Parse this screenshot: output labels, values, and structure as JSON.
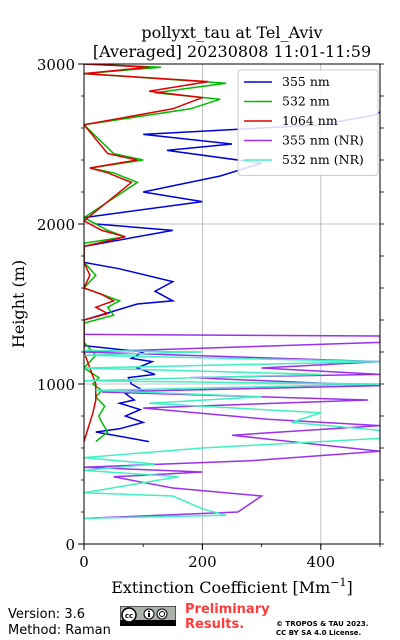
{
  "chart_data": {
    "type": "line",
    "title_line1": "pollyxt_tau at Tel_Aviv",
    "title_line2": "[Averaged] 20230808 11:01-11:59",
    "xlabel": "Extinction Coefficient [Mm",
    "xlabel_sup": "−1",
    "xlabel_close": "]",
    "ylabel": "Height (m)",
    "xlim": [
      0,
      500
    ],
    "ylim": [
      0,
      3000
    ],
    "xticks": [
      0,
      200,
      400
    ],
    "xticks_labels": [
      "0",
      "200",
      "400"
    ],
    "yticks": [
      0,
      1000,
      2000,
      3000
    ],
    "yticks_labels": [
      "0",
      "1000",
      "2000",
      "3000"
    ],
    "grid": true,
    "legend_position": "top-right",
    "series": [
      {
        "name": "355 nm",
        "color": "#0000dd",
        "points": [
          [
            110,
            640
          ],
          [
            20,
            700
          ],
          [
            60,
            720
          ],
          [
            100,
            760
          ],
          [
            70,
            800
          ],
          [
            95,
            840
          ],
          [
            60,
            880
          ],
          [
            85,
            900
          ],
          [
            70,
            940
          ],
          [
            100,
            960
          ],
          [
            80,
            1000
          ],
          [
            75,
            1040
          ],
          [
            120,
            1060
          ],
          [
            90,
            1100
          ],
          [
            115,
            1140
          ],
          [
            80,
            1160
          ],
          [
            100,
            1200
          ],
          [
            0,
            1240
          ],
          [
            0,
            1300
          ],
          [
            0,
            1400
          ],
          [
            90,
            1500
          ],
          [
            150,
            1520
          ],
          [
            120,
            1580
          ],
          [
            150,
            1640
          ],
          [
            60,
            1720
          ],
          [
            0,
            1760
          ],
          [
            0,
            1860
          ],
          [
            150,
            1960
          ],
          [
            20,
            2000
          ],
          [
            0,
            2040
          ],
          [
            200,
            2140
          ],
          [
            100,
            2200
          ],
          [
            230,
            2300
          ],
          [
            300,
            2380
          ],
          [
            140,
            2460
          ],
          [
            250,
            2500
          ],
          [
            100,
            2560
          ],
          [
            400,
            2620
          ],
          [
            490,
            2680
          ],
          [
            500,
            2700
          ]
        ]
      },
      {
        "name": "532 nm",
        "color": "#00bb00",
        "points": [
          [
            20,
            640
          ],
          [
            40,
            700
          ],
          [
            30,
            760
          ],
          [
            25,
            800
          ],
          [
            35,
            860
          ],
          [
            20,
            920
          ],
          [
            30,
            960
          ],
          [
            15,
            1000
          ],
          [
            25,
            1040
          ],
          [
            0,
            1100
          ],
          [
            20,
            1180
          ],
          [
            0,
            1260
          ],
          [
            0,
            1380
          ],
          [
            50,
            1430
          ],
          [
            40,
            1480
          ],
          [
            60,
            1520
          ],
          [
            0,
            1600
          ],
          [
            20,
            1680
          ],
          [
            0,
            1760
          ],
          [
            0,
            1880
          ],
          [
            70,
            1920
          ],
          [
            40,
            1960
          ],
          [
            0,
            2040
          ],
          [
            90,
            2260
          ],
          [
            50,
            2320
          ],
          [
            10,
            2350
          ],
          [
            100,
            2400
          ],
          [
            50,
            2440
          ],
          [
            0,
            2620
          ],
          [
            180,
            2720
          ],
          [
            230,
            2780
          ],
          [
            120,
            2820
          ],
          [
            240,
            2880
          ],
          [
            0,
            2940
          ],
          [
            130,
            2980
          ],
          [
            0,
            3000
          ]
        ]
      },
      {
        "name": "1064 nm",
        "color": "#dd0000",
        "points": [
          [
            0,
            640
          ],
          [
            10,
            760
          ],
          [
            15,
            820
          ],
          [
            20,
            900
          ],
          [
            20,
            1000
          ],
          [
            10,
            1100
          ],
          [
            0,
            1200
          ],
          [
            0,
            1300
          ],
          [
            0,
            1400
          ],
          [
            40,
            1440
          ],
          [
            20,
            1480
          ],
          [
            50,
            1520
          ],
          [
            30,
            1560
          ],
          [
            0,
            1600
          ],
          [
            10,
            1680
          ],
          [
            0,
            1760
          ],
          [
            0,
            1860
          ],
          [
            70,
            1920
          ],
          [
            30,
            1960
          ],
          [
            0,
            2020
          ],
          [
            80,
            2260
          ],
          [
            40,
            2320
          ],
          [
            10,
            2350
          ],
          [
            90,
            2400
          ],
          [
            40,
            2440
          ],
          [
            0,
            2620
          ],
          [
            150,
            2720
          ],
          [
            200,
            2790
          ],
          [
            110,
            2830
          ],
          [
            210,
            2890
          ],
          [
            0,
            2940
          ],
          [
            110,
            2980
          ],
          [
            0,
            3000
          ]
        ]
      },
      {
        "name": "355 nm (NR)",
        "color": "#9a30f0",
        "points": [
          [
            0,
            160
          ],
          [
            260,
            200
          ],
          [
            300,
            300
          ],
          [
            150,
            350
          ],
          [
            50,
            420
          ],
          [
            200,
            450
          ],
          [
            0,
            480
          ],
          [
            280,
            520
          ],
          [
            500,
            580
          ],
          [
            250,
            680
          ],
          [
            500,
            740
          ],
          [
            310,
            780
          ],
          [
            100,
            850
          ],
          [
            480,
            900
          ],
          [
            30,
            950
          ],
          [
            500,
            990
          ],
          [
            180,
            1040
          ],
          [
            500,
            1060
          ],
          [
            300,
            1100
          ],
          [
            500,
            1140
          ],
          [
            0,
            1200
          ],
          [
            500,
            1260
          ],
          [
            500,
            1300
          ],
          [
            0,
            1310
          ]
        ]
      },
      {
        "name": "532 nm (NR)",
        "color": "#40f0c0",
        "points": [
          [
            0,
            160
          ],
          [
            240,
            180
          ],
          [
            200,
            220
          ],
          [
            150,
            300
          ],
          [
            0,
            320
          ],
          [
            160,
            420
          ],
          [
            0,
            460
          ],
          [
            120,
            500
          ],
          [
            0,
            540
          ],
          [
            200,
            600
          ],
          [
            500,
            660
          ],
          [
            500,
            710
          ],
          [
            350,
            760
          ],
          [
            400,
            820
          ],
          [
            110,
            880
          ],
          [
            300,
            920
          ],
          [
            20,
            960
          ],
          [
            500,
            1000
          ],
          [
            0,
            1020
          ],
          [
            400,
            1060
          ],
          [
            0,
            1100
          ],
          [
            500,
            1140
          ],
          [
            0,
            1180
          ],
          [
            200,
            1200
          ],
          [
            0,
            1210
          ]
        ]
      }
    ]
  },
  "footer": {
    "version": "Version: 3.6",
    "method": "Method: Raman",
    "prelim_line1": "Preliminary",
    "prelim_line2": "Results.",
    "copyright_line1": "© TROPOS & TAU 2023.",
    "copyright_line2": "CC BY SA 4.0 License."
  }
}
